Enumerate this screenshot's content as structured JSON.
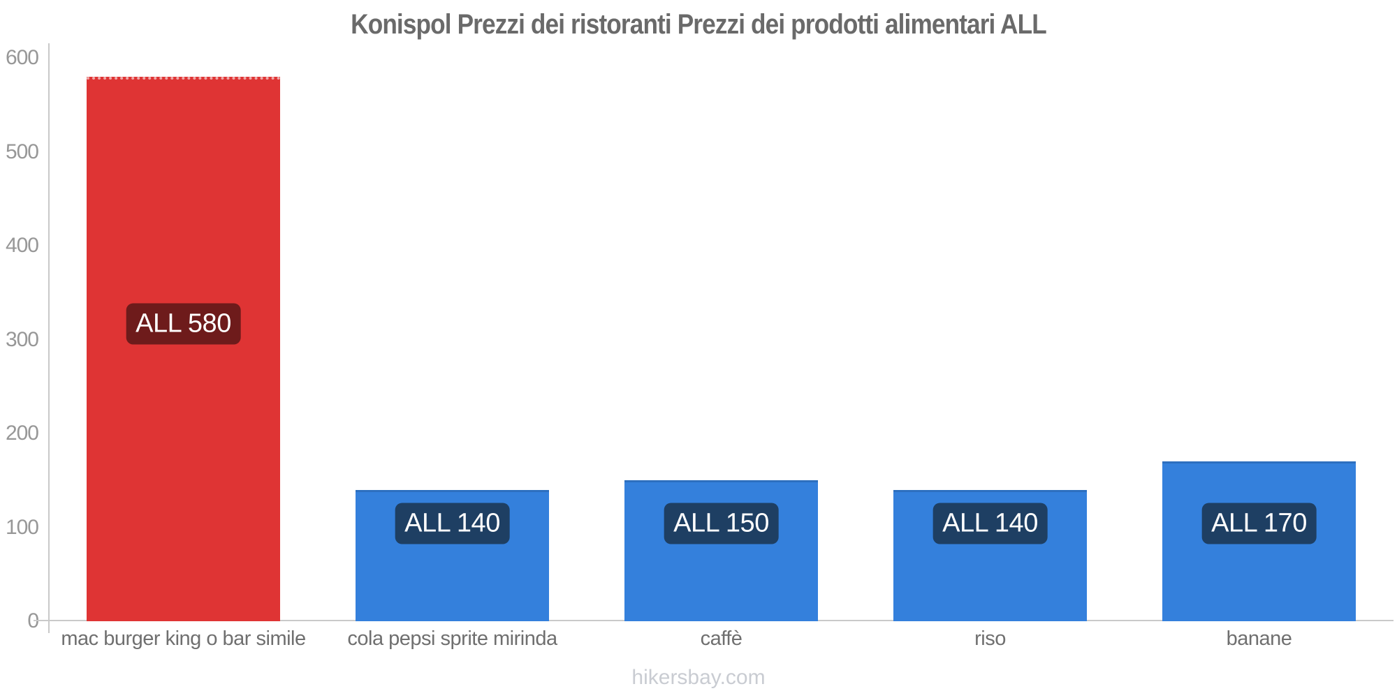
{
  "chart_data": {
    "type": "bar",
    "title": "Konispol Prezzi dei ristoranti Prezzi dei prodotti alimentari ALL",
    "currency": "ALL",
    "categories": [
      "mac burger king o bar simile",
      "cola pepsi sprite mirinda",
      "caffè",
      "riso",
      "banane"
    ],
    "values": [
      580,
      140,
      150,
      140,
      170
    ],
    "bar_labels": [
      "ALL 580",
      "ALL 140",
      "ALL 150",
      "ALL 140",
      "ALL 170"
    ],
    "bar_colors": [
      "#df3434",
      "#3480dc",
      "#3480dc",
      "#3480dc",
      "#3480dc"
    ],
    "label_bg_colors": [
      "#6e1b1b",
      "#1e3f63",
      "#1e3f63",
      "#1e3f63",
      "#1e3f63"
    ],
    "label_text_color": "#ffffff",
    "xlabel": "",
    "ylabel": "",
    "ylim": [
      0,
      600
    ],
    "yticks": [
      0,
      100,
      200,
      300,
      400,
      500,
      600
    ],
    "grid": false,
    "legend": false
  },
  "footer": {
    "text": "hikersbay.com"
  },
  "colors": {
    "axis": "#c9c9c9",
    "tick_text": "#979797",
    "category_text": "#6f6f6f",
    "title_text": "#6a6a6a",
    "footer_text": "#c9ccd2"
  }
}
